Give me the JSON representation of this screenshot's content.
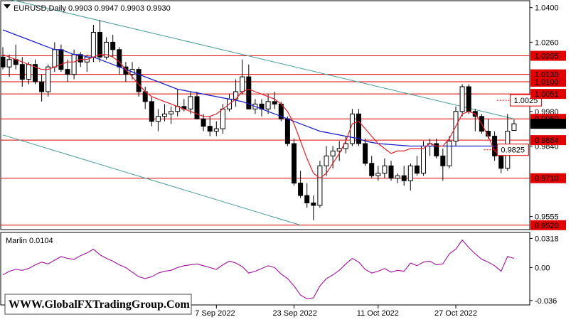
{
  "chart_data": {
    "type": "candlestick",
    "title": "EURUSD,Daily  0.9903  0.9947  0.9903  0.9930",
    "symbol": "EURUSD",
    "timeframe": "Daily",
    "ohlc_current": [
      0.9903,
      0.9947,
      0.9903,
      0.993
    ],
    "ylim": [
      0.9505,
      1.0425
    ],
    "price_ticks": [
      "1.0400",
      "1.0260",
      "0.9980",
      "0.9840",
      "0.9555"
    ],
    "x_ticks": [
      "7 Sep 2022",
      "23 Sep 2022",
      "11 Oct 2022",
      "27 Oct 2022"
    ],
    "x_tick_bars": [
      33,
      45,
      58,
      70
    ],
    "levels": [
      {
        "label": "1.0205",
        "value": 1.0205
      },
      {
        "label": "1.0130",
        "value": 1.013
      },
      {
        "label": "1.0100",
        "value": 1.01
      },
      {
        "label": "1.0051",
        "value": 1.0051
      },
      {
        "label": "0.9950",
        "value": 0.995
      },
      {
        "label": "0.9864",
        "value": 0.9864
      },
      {
        "label": "0.9710",
        "value": 0.971
      },
      {
        "label": "0.9520",
        "value": 0.952
      }
    ],
    "current_price_label": "0.9930",
    "annotations": [
      {
        "label": "1.0025",
        "value": 1.0025,
        "bar": 76
      },
      {
        "label": "0.9825",
        "value": 0.9825,
        "bar": 74
      }
    ],
    "candles": [
      [
        1.02,
        1.024,
        1.015,
        1.016
      ],
      [
        1.016,
        1.021,
        1.012,
        1.019
      ],
      [
        1.019,
        1.025,
        1.015,
        1.017
      ],
      [
        1.017,
        1.02,
        1.008,
        1.011
      ],
      [
        1.011,
        1.018,
        1.009,
        1.017
      ],
      [
        1.017,
        1.019,
        1.009,
        1.01
      ],
      [
        1.01,
        1.013,
        1.002,
        1.006
      ],
      [
        1.006,
        1.017,
        1.004,
        1.016
      ],
      [
        1.016,
        1.026,
        1.014,
        1.023
      ],
      [
        1.023,
        1.025,
        1.014,
        1.015
      ],
      [
        1.015,
        1.019,
        1.01,
        1.013
      ],
      [
        1.013,
        1.023,
        1.011,
        1.021
      ],
      [
        1.021,
        1.022,
        1.016,
        1.018
      ],
      [
        1.018,
        1.021,
        1.014,
        1.02
      ],
      [
        1.02,
        1.033,
        1.018,
        1.03
      ],
      [
        1.03,
        1.035,
        1.018,
        1.02
      ],
      [
        1.02,
        1.028,
        1.019,
        1.026
      ],
      [
        1.026,
        1.029,
        1.02,
        1.023
      ],
      [
        1.023,
        1.024,
        1.013,
        1.016
      ],
      [
        1.016,
        1.018,
        1.01,
        1.013
      ],
      [
        1.013,
        1.018,
        1.011,
        1.015
      ],
      [
        1.015,
        1.016,
        1.004,
        1.006
      ],
      [
        1.006,
        1.008,
        0.999,
        1.002
      ],
      [
        1.002,
        1.004,
        0.992,
        0.994
      ],
      [
        0.994,
        0.999,
        0.99,
        0.996
      ],
      [
        0.996,
        1.001,
        0.994,
        0.997
      ],
      [
        0.997,
        1.0,
        0.993,
        0.998
      ],
      [
        0.998,
        1.007,
        0.996,
        1.0
      ],
      [
        1.0,
        1.003,
        0.998,
        0.999
      ],
      [
        0.999,
        1.006,
        0.997,
        1.004
      ],
      [
        1.004,
        1.006,
        0.995,
        0.995
      ],
      [
        0.995,
        0.997,
        0.99,
        0.992
      ],
      [
        0.992,
        0.996,
        0.988,
        0.99
      ],
      [
        0.99,
        0.994,
        0.988,
        0.991
      ],
      [
        0.991,
        1.001,
        0.989,
        0.999
      ],
      [
        0.999,
        1.005,
        0.998,
        1.003
      ],
      [
        1.003,
        1.011,
        1.0,
        1.006
      ],
      [
        1.006,
        1.019,
        1.005,
        1.012
      ],
      [
        1.012,
        1.017,
        0.999,
        0.999
      ],
      [
        0.999,
        1.003,
        0.997,
        1.001
      ],
      [
        1.001,
        1.003,
        0.996,
        0.999
      ],
      [
        0.999,
        1.005,
        0.997,
        1.002
      ],
      [
        1.002,
        1.006,
        0.999,
        1.001
      ],
      [
        1.001,
        1.002,
        0.994,
        0.995
      ],
      [
        0.995,
        0.996,
        0.984,
        0.985
      ],
      [
        0.985,
        0.987,
        0.968,
        0.969
      ],
      [
        0.969,
        0.974,
        0.963,
        0.964
      ],
      [
        0.964,
        0.969,
        0.959,
        0.961
      ],
      [
        0.961,
        0.964,
        0.954,
        0.96
      ],
      [
        0.96,
        0.978,
        0.959,
        0.976
      ],
      [
        0.976,
        0.984,
        0.972,
        0.98
      ],
      [
        0.98,
        0.984,
        0.975,
        0.982
      ],
      [
        0.982,
        0.986,
        0.978,
        0.983
      ],
      [
        0.983,
        0.988,
        0.981,
        0.985
      ],
      [
        0.985,
        0.999,
        0.984,
        0.997
      ],
      [
        0.997,
        0.999,
        0.984,
        0.985
      ],
      [
        0.985,
        0.987,
        0.976,
        0.977
      ],
      [
        0.977,
        0.98,
        0.971,
        0.972
      ],
      [
        0.972,
        0.976,
        0.97,
        0.973
      ],
      [
        0.973,
        0.979,
        0.971,
        0.976
      ],
      [
        0.976,
        0.978,
        0.97,
        0.971
      ],
      [
        0.971,
        0.973,
        0.969,
        0.972
      ],
      [
        0.972,
        0.976,
        0.968,
        0.97
      ],
      [
        0.97,
        0.977,
        0.966,
        0.976
      ],
      [
        0.976,
        0.98,
        0.972,
        0.973
      ],
      [
        0.973,
        0.986,
        0.972,
        0.984
      ],
      [
        0.984,
        0.987,
        0.98,
        0.985
      ],
      [
        0.985,
        0.987,
        0.979,
        0.98
      ],
      [
        0.98,
        0.983,
        0.97,
        0.976
      ],
      [
        0.976,
        0.988,
        0.975,
        0.986
      ],
      [
        0.986,
        1.0,
        0.984,
        0.998
      ],
      [
        0.998,
        1.009,
        0.996,
        1.008
      ],
      [
        1.008,
        1.009,
        0.997,
        0.998
      ],
      [
        0.998,
        0.999,
        0.99,
        0.996
      ],
      [
        0.996,
        0.997,
        0.989,
        0.99
      ],
      [
        0.99,
        0.995,
        0.987,
        0.988
      ],
      [
        0.988,
        0.99,
        0.978,
        0.98
      ],
      [
        0.98,
        0.981,
        0.973,
        0.975
      ],
      [
        0.975,
        0.997,
        0.974,
        0.99
      ],
      [
        0.9903,
        0.9947,
        0.9903,
        0.993
      ]
    ],
    "ma_red": [
      1.021,
      1.02,
      1.019,
      1.018,
      1.017,
      1.016,
      1.015,
      1.015,
      1.016,
      1.017,
      1.018,
      1.018,
      1.019,
      1.019,
      1.02,
      1.021,
      1.021,
      1.02,
      1.018,
      1.015,
      1.012,
      1.009,
      1.006,
      1.004,
      1.003,
      1.002,
      1.001,
      1.0,
      0.999,
      0.998,
      0.997,
      0.996,
      0.996,
      0.997,
      0.999,
      1.001,
      1.003,
      1.006,
      1.007,
      1.006,
      1.005,
      1.004,
      1.003,
      1.001,
      0.998,
      0.993,
      0.986,
      0.979,
      0.973,
      0.971,
      0.973,
      0.977,
      0.981,
      0.986,
      0.993,
      0.994,
      0.991,
      0.988,
      0.985,
      0.983,
      0.981,
      0.982,
      0.982,
      0.983,
      0.983,
      0.983,
      0.985,
      0.984,
      0.984,
      0.987,
      0.992,
      0.997,
      0.998,
      0.997,
      0.993,
      0.988,
      0.982,
      0.98,
      0.982,
      0.983
    ],
    "ma_blue": [
      1.031,
      1.03,
      1.029,
      1.028,
      1.027,
      1.026,
      1.025,
      1.024,
      1.023,
      1.023,
      1.022,
      1.021,
      1.021,
      1.02,
      1.02,
      1.019,
      1.018,
      1.017,
      1.016,
      1.015,
      1.014,
      1.013,
      1.012,
      1.011,
      1.01,
      1.009,
      1.008,
      1.007,
      1.0065,
      1.006,
      1.0055,
      1.005,
      1.0045,
      1.004,
      1.0035,
      1.003,
      1.0025,
      1.002,
      1.001,
      1.0,
      0.999,
      0.998,
      0.997,
      0.996,
      0.995,
      0.994,
      0.993,
      0.992,
      0.991,
      0.99,
      0.9895,
      0.989,
      0.9885,
      0.988,
      0.9875,
      0.987,
      0.986,
      0.9855,
      0.985,
      0.9848,
      0.9846,
      0.9844,
      0.9842,
      0.984,
      0.984,
      0.984,
      0.984,
      0.984,
      0.984,
      0.984,
      0.984,
      0.984,
      0.984,
      0.984,
      0.984,
      0.984,
      0.984,
      0.984,
      0.984,
      0.984
    ],
    "indicator": {
      "name": "Marlin",
      "label": "Marlin 0.0104",
      "value": 0.0104,
      "ylim": [
        -0.04,
        0.036
      ],
      "ticks": [
        "0.0318",
        "0.00",
        "-0.036"
      ],
      "values": [
        -0.008,
        -0.004,
        -0.002,
        -0.003,
        -0.001,
        0.003,
        0.006,
        0.004,
        0.008,
        0.012,
        0.01,
        0.009,
        0.013,
        0.016,
        0.02,
        0.014,
        0.01,
        0.007,
        0.003,
        0.0,
        -0.005,
        -0.01,
        -0.012,
        -0.01,
        -0.006,
        -0.004,
        -0.003,
        0.0,
        0.002,
        0.003,
        0.004,
        0.002,
        0.0,
        -0.002,
        0.003,
        0.007,
        0.005,
        0.001,
        -0.006,
        -0.004,
        -0.001,
        0.002,
        0.0,
        -0.007,
        -0.012,
        -0.02,
        -0.03,
        -0.034,
        -0.033,
        -0.02,
        -0.012,
        -0.008,
        -0.003,
        0.004,
        0.01,
        0.006,
        -0.002,
        -0.006,
        -0.004,
        -0.001,
        -0.005,
        -0.003,
        -0.004,
        0.005,
        0.002,
        0.006,
        0.007,
        0.003,
        0.004,
        0.015,
        0.02,
        0.03,
        0.022,
        0.015,
        0.009,
        0.006,
        0.002,
        -0.004,
        0.012,
        0.01
      ]
    },
    "channel_lines": [
      {
        "from_bar": 0,
        "from_value": 1.044,
        "to_bar": 79,
        "to_value": 0.995
      },
      {
        "from_bar": 0,
        "from_value": 0.9885,
        "to_bar": 46,
        "to_value": 0.952
      }
    ],
    "watermark": "WWW.GlobalFXTradingGroup.Com",
    "colors": {
      "level": "#e00000",
      "ma_red": "#e0202a",
      "ma_blue": "#1e22c8",
      "channel": "#4a9a9a",
      "indicator": "#a010a0",
      "candle_up": "#ffffff",
      "candle_down": "#000000"
    }
  }
}
